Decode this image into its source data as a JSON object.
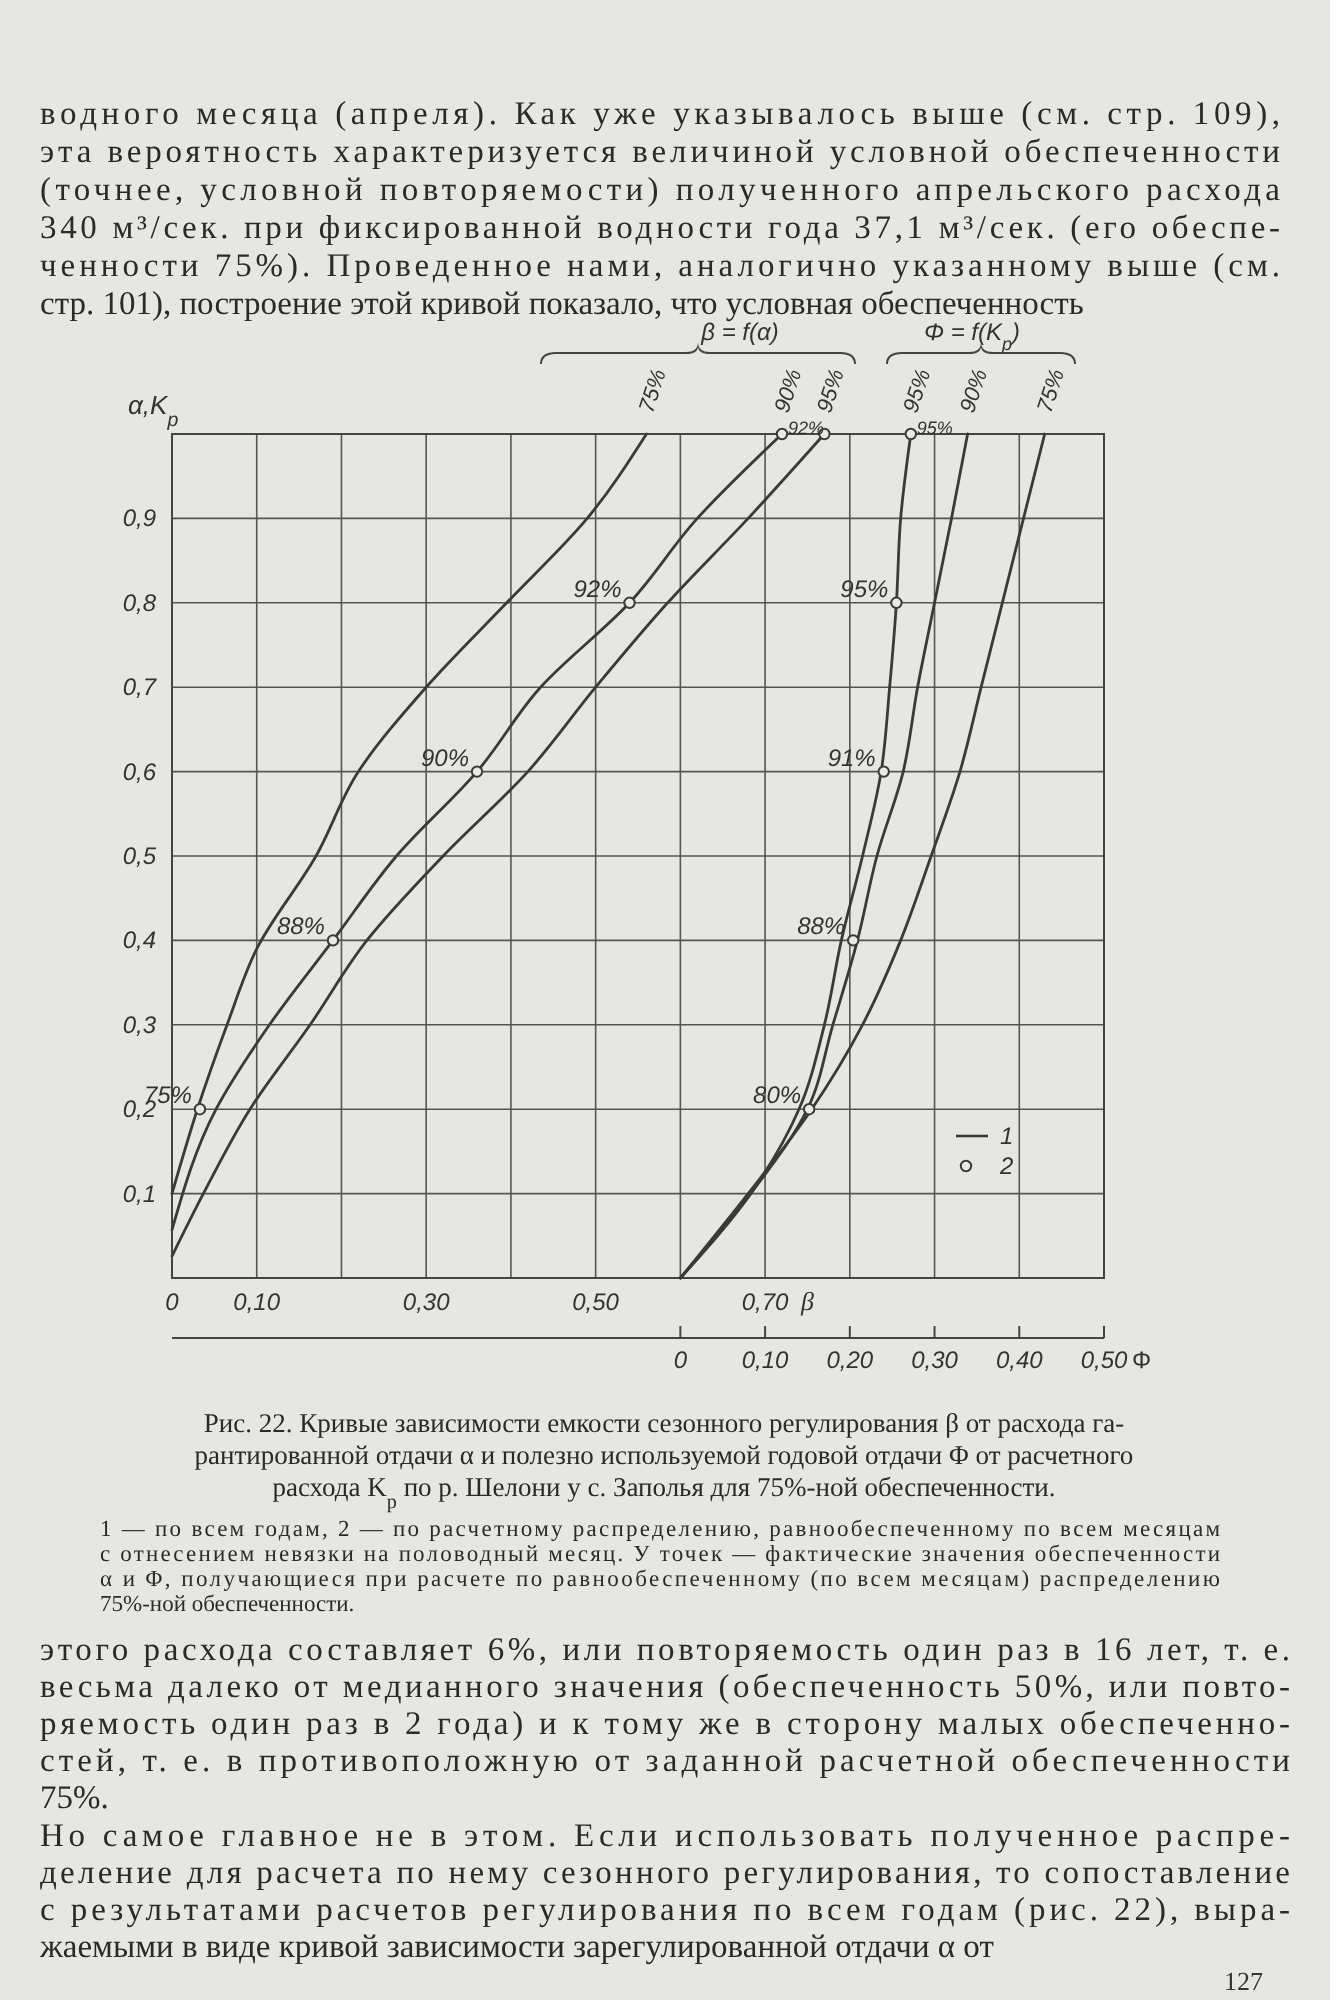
{
  "chart_data": {
    "type": "line",
    "title": "Рис. 22. Кривые зависимости емкости сезонного регулирования β от расхода га-\nрантированной отдачи α и полезно используемой годовой отдачи Φ от расчетного\nрасхода K$_{p}$ по р. Шелони у с. Заполья для 75%-ной обеспеченности.",
    "xlabel": "β",
    "x2label": "Φ",
    "ylabel": "α,K$_{p}$",
    "xlim": [
      0,
      1.1
    ],
    "xticks": [
      {
        "value": 0,
        "label": "0"
      },
      {
        "value": 0.1,
        "label": "0,10"
      },
      {
        "value": 0.2,
        "label": null
      },
      {
        "value": 0.3,
        "label": "0,30"
      },
      {
        "value": 0.4,
        "label": null
      },
      {
        "value": 0.5,
        "label": "0,50"
      },
      {
        "value": 0.6,
        "label": null
      },
      {
        "value": 0.7,
        "label": "0,70"
      },
      {
        "value": 0.8,
        "label": null
      },
      {
        "value": 0.9,
        "label": null
      },
      {
        "value": 1.0,
        "label": null
      }
    ],
    "x2lim": [
      -0.6,
      0.5
    ],
    "x2ticks": [
      {
        "value": 0,
        "label": "0"
      },
      {
        "value": 0.1,
        "label": "0,10"
      },
      {
        "value": 0.2,
        "label": "0,20"
      },
      {
        "value": 0.3,
        "label": "0,30"
      },
      {
        "value": 0.4,
        "label": "0,40"
      },
      {
        "value": 0.5,
        "label": "0,50"
      }
    ],
    "ylim": [
      0,
      1
    ],
    "yticks": [
      {
        "value": 0,
        "label": null
      },
      {
        "value": 0.1,
        "label": "0,1"
      },
      {
        "value": 0.2,
        "label": "0,2"
      },
      {
        "value": 0.3,
        "label": "0,3"
      },
      {
        "value": 0.4,
        "label": "0,4"
      },
      {
        "value": 0.5,
        "label": "0,5"
      },
      {
        "value": 0.6,
        "label": "0,6"
      },
      {
        "value": 0.7,
        "label": "0,7"
      },
      {
        "value": 0.8,
        "label": "0,8"
      },
      {
        "value": 0.9,
        "label": "0,9"
      }
    ],
    "grid": true,
    "legend": "bottom right",
    "line_style": "solid",
    "series": [
      {
        "name": "75%",
        "color": "#3a3a3a",
        "x": [
          0,
          0.03,
          0.065,
          0.1,
          0.17,
          0.22,
          0.3,
          0.395,
          0.49,
          0.56
        ],
        "values": [
          0.1,
          0.2,
          0.3,
          0.39,
          0.5,
          0.6,
          0.7,
          0.8,
          0.9,
          1.0
        ]
      },
      {
        "name": "90%",
        "color": "#3a3a3a",
        "x": [
          0,
          0.052,
          0.115,
          0.19,
          0.265,
          0.36,
          0.435,
          0.54,
          0.62,
          0.72
        ],
        "values": [
          0.057,
          0.2,
          0.3,
          0.4,
          0.5,
          0.6,
          0.7,
          0.8,
          0.9,
          1.0
        ]
      },
      {
        "name": "95%",
        "color": "#3a3a3a",
        "x": [
          0,
          0.037,
          0.092,
          0.163,
          0.23,
          0.32,
          0.42,
          0.5,
          0.585,
          0.68,
          0.77
        ],
        "values": [
          0.026,
          0.1,
          0.2,
          0.3,
          0.4,
          0.5,
          0.6,
          0.7,
          0.8,
          0.9,
          1.0
        ]
      },
      {
        "type": "scatter",
        "name": "2",
        "marker": "circle",
        "color": "#3a3a3a",
        "x": [
          0.033,
          0.19,
          0.36,
          0.54,
          0.72,
          0.77
        ],
        "values": [
          0.2,
          0.4,
          0.6,
          0.8,
          1.0,
          1.0
        ]
      },
      {
        "name": "95%",
        "axis": "x2",
        "color": "#3a3a3a",
        "x": [
          0,
          0.083,
          0.14,
          0.17,
          0.19,
          0.215,
          0.237,
          0.247,
          0.255,
          0.26,
          0.272
        ],
        "values": [
          0,
          0.1,
          0.2,
          0.3,
          0.4,
          0.5,
          0.6,
          0.7,
          0.8,
          0.9,
          1.0
        ]
      },
      {
        "name": "90%",
        "axis": "x2",
        "color": "#3a3a3a",
        "x": [
          0,
          0.083,
          0.15,
          0.18,
          0.209,
          0.232,
          0.263,
          0.28,
          0.3,
          0.32,
          0.339
        ],
        "values": [
          0,
          0.1,
          0.2,
          0.3,
          0.4,
          0.5,
          0.6,
          0.7,
          0.8,
          0.9,
          1.0
        ]
      },
      {
        "name": "75%",
        "axis": "x2",
        "color": "#3a3a3a",
        "x": [
          0,
          0.08,
          0.155,
          0.215,
          0.26,
          0.296,
          0.33,
          0.355,
          0.38,
          0.405,
          0.43
        ],
        "values": [
          0,
          0.1,
          0.2,
          0.3,
          0.4,
          0.5,
          0.6,
          0.7,
          0.8,
          0.9,
          1.0
        ]
      },
      {
        "type": "scatter",
        "marker": "circle",
        "axis": "x2",
        "color": "#3a3a3a",
        "x": [
          0.272,
          0.255,
          0.24,
          0.204,
          0.152
        ],
        "values": [
          1.0,
          0.8,
          0.6,
          0.4,
          0.2
        ]
      }
    ],
    "annotations": [
      "β = f(α)",
      "Φ = f(K$_{p}$)",
      "водного месяца (апреля). Как уже указывалось выше (см. стр. 109),\nэта вероятность характеризуется величиной условной обеспеченности\n(точнее, условной повторяемости) полученного апрельского расхода\n340 м³/сек. при фиксированной водности года 37,1 м³/сек. (его обеспе-\nченности 75%). Проведенное нами, аналогично указанному выше (см.\nстр. 101), построение этой кривой показало, что условная обеспеченность",
      "1 — по всем годам, 2 — по расчетному распределению, равнообеспеченному по всем месяцам\nс отнесением невязки на половодный месяц. У точек — фактические значения обеспеченности\nα и Φ, получающиеся при расчете по равнообеспеченному (по всем месяцам) распределению\n75%-ной обеспеченности.",
      "этого расхода составляет 6%, или повторяемость один раз в 16 лет, т. е.\nвесьма далеко от медианного значения (обеспеченность 50%, или повто-\nряемость один раз в 2 года) и к тому же в сторону малых обеспеченно-\nстей, т. е. в противоположную от заданной расчетной обеспеченности\n75%.",
      "Но самое главное не в этом. Если использовать полученное распре-\nделение для расчета по нему сезонного регулирования, то сопоставление\nс результатами расчетов регулирования по всем годам (рис. 22), выра-\nжаемыми в виде кривой зависимости зарегулированной отдачи α от",
      "1",
      "127",
      {
        "text": "75%",
        "x": 0.033,
        "y": 0.2
      },
      {
        "text": "88%",
        "x": 0.19,
        "y": 0.4
      },
      {
        "text": "90%",
        "x": 0.36,
        "y": 0.6
      },
      {
        "text": "92%",
        "x": 0.54,
        "y": 0.8
      },
      {
        "text": "92%",
        "x": 0.72,
        "y": 1.0
      },
      {
        "text": "95%",
        "x": 0.872,
        "y": 1.0
      },
      {
        "text": "95%",
        "x": 0.855,
        "y": 0.8
      },
      {
        "text": "91%",
        "x": 0.84,
        "y": 0.6
      },
      {
        "text": "88%",
        "x": 0.804,
        "y": 0.4
      },
      {
        "text": "80%",
        "x": 0.752,
        "y": 0.2
      }
    ]
  }
}
